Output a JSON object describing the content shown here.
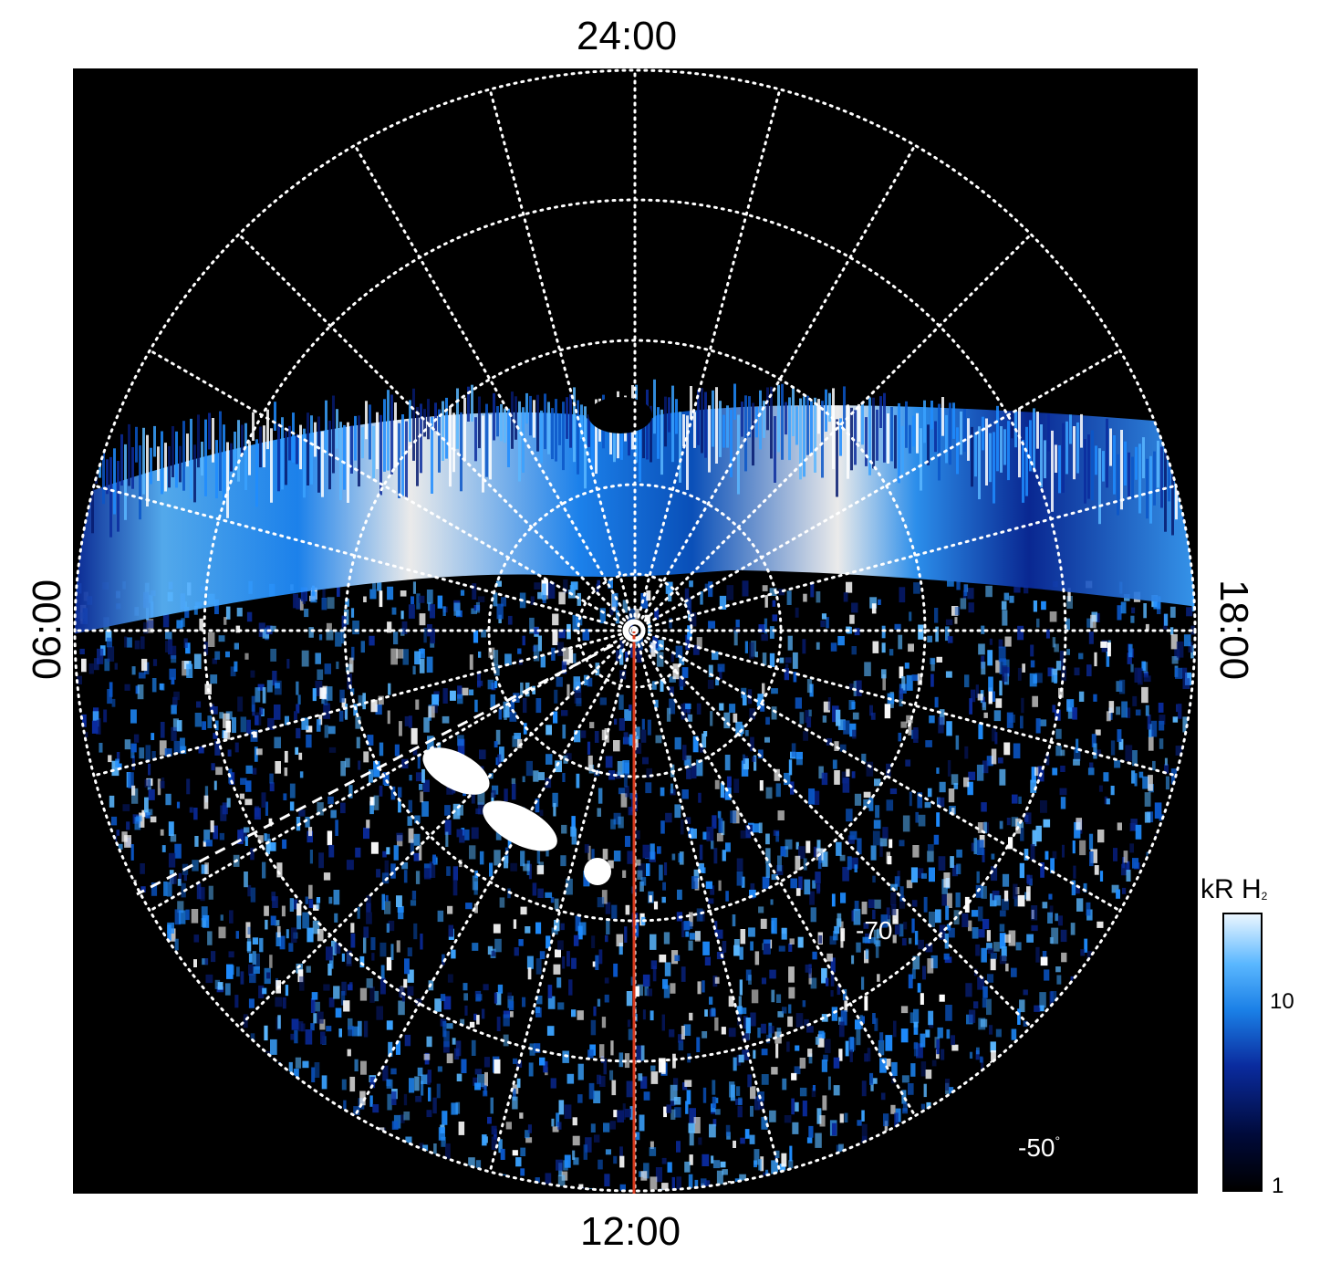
{
  "time_labels": {
    "top": "24:00",
    "bottom": "12:00",
    "left": "06:00",
    "right": "18:00"
  },
  "latitude_labels": {
    "inner": "-70",
    "outer": "-50",
    "degree_symbol": "°"
  },
  "colorbar": {
    "unit_main": "kR H",
    "unit_subscript": "2",
    "ticks": [
      "10",
      "1"
    ],
    "colors": [
      "#000000",
      "#0a2b9e",
      "#1a7fe6",
      "#eaf6ff"
    ]
  },
  "colors": {
    "background": "#000000",
    "grid": "#ffffff",
    "meridian_line": "#d8391c",
    "aurora_bright": "#ffffff",
    "aurora_mid": "#1e8cff",
    "aurora_dark": "#0a2b9e"
  }
}
